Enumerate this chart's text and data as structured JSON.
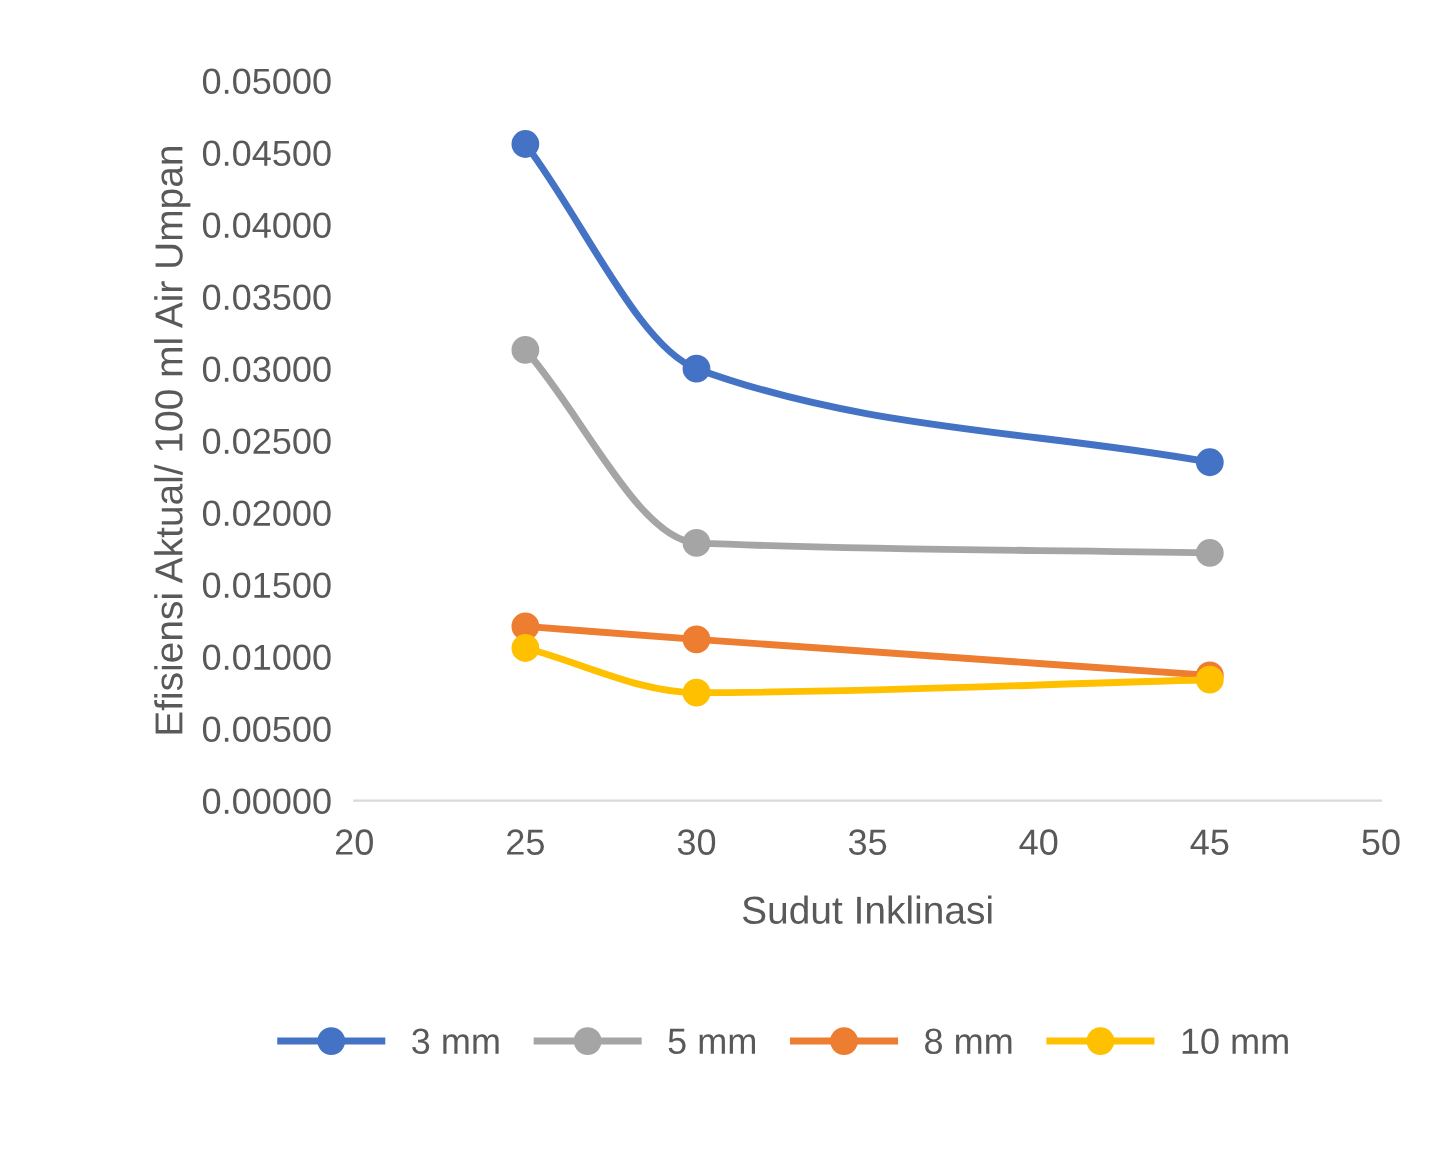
{
  "chart_data": {
    "type": "line",
    "xlabel": "Sudut Inklinasi",
    "ylabel": "Efisiensi Aktual/ 100 ml Air Umpan",
    "x": [
      25,
      30,
      45
    ],
    "series": [
      {
        "name": "3 mm",
        "color": "#4472c4",
        "values": [
          0.0456,
          0.03,
          0.0235
        ]
      },
      {
        "name": "5 mm",
        "color": "#a5a5a5",
        "values": [
          0.0313,
          0.0179,
          0.0172
        ]
      },
      {
        "name": "8 mm",
        "color": "#ed7d31",
        "values": [
          0.0121,
          0.0112,
          0.0087
        ]
      },
      {
        "name": "10 mm",
        "color": "#ffc000",
        "values": [
          0.0106,
          0.0075,
          0.0084
        ]
      }
    ],
    "xlim": [
      20,
      50
    ],
    "xticks": [
      20,
      25,
      30,
      35,
      40,
      45,
      50
    ],
    "ylim": [
      0,
      0.05
    ],
    "yticks": [
      {
        "value": 0,
        "label": "0.00000"
      },
      {
        "value": 0.005,
        "label": "0.00500"
      },
      {
        "value": 0.01,
        "label": "0.01000"
      },
      {
        "value": 0.015,
        "label": "0.01500"
      },
      {
        "value": 0.02,
        "label": "0.02000"
      },
      {
        "value": 0.025,
        "label": "0.02500"
      },
      {
        "value": 0.03,
        "label": "0.03000"
      },
      {
        "value": 0.035,
        "label": "0.03500"
      },
      {
        "value": 0.04,
        "label": "0.04000"
      },
      {
        "value": 0.045,
        "label": "0.04500"
      },
      {
        "value": 0.05,
        "label": "0.05000"
      }
    ],
    "grid": false,
    "legend": "bottom",
    "marker": "circle",
    "line_style": "solid"
  }
}
